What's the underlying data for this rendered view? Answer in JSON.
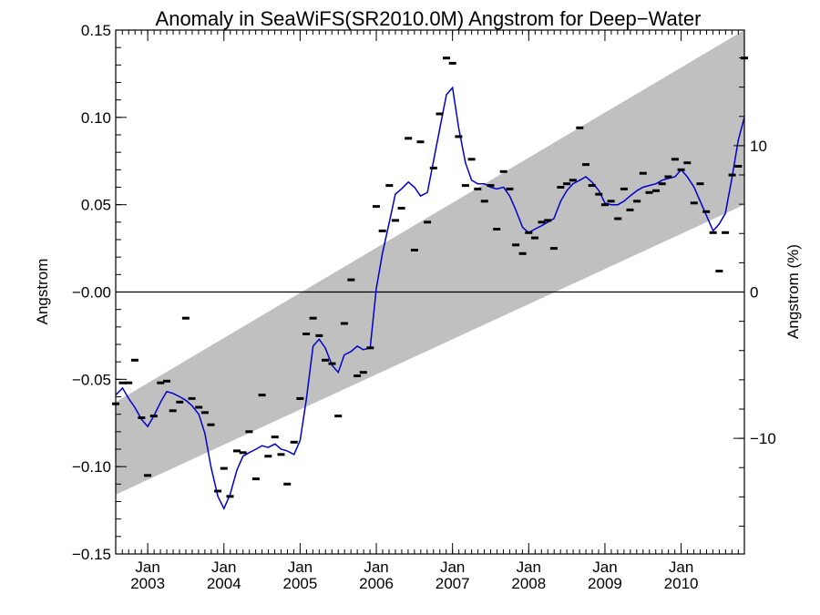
{
  "chart_data": {
    "type": "line",
    "title": "Anomaly in SeaWiFS(SR2010.0M) Angstrom for Deep−Water",
    "ylabel": "Angstrom",
    "y2label": "Angstrom (%)",
    "xlim": [
      2002.58,
      2010.83
    ],
    "ylim": [
      -0.15,
      0.15
    ],
    "y2lim": [
      -17.9,
      17.9
    ],
    "yticks": [
      {
        "v": 0.15,
        "label": "0.15"
      },
      {
        "v": 0.1,
        "label": "0.10"
      },
      {
        "v": 0.05,
        "label": "0.05"
      },
      {
        "v": 0.0,
        "label": "−0.00"
      },
      {
        "v": -0.05,
        "label": "−0.05"
      },
      {
        "v": -0.1,
        "label": "−0.10"
      },
      {
        "v": -0.15,
        "label": "−0.15"
      }
    ],
    "y2ticks": [
      {
        "v": 10,
        "label": "10"
      },
      {
        "v": 0,
        "label": "0"
      },
      {
        "v": -10,
        "label": "−10"
      }
    ],
    "xticks": [
      {
        "v": 2003.0,
        "month": "Jan",
        "year": "2003"
      },
      {
        "v": 2004.0,
        "month": "Jan",
        "year": "2004"
      },
      {
        "v": 2005.0,
        "month": "Jan",
        "year": "2005"
      },
      {
        "v": 2006.0,
        "month": "Jan",
        "year": "2006"
      },
      {
        "v": 2007.0,
        "month": "Jan",
        "year": "2007"
      },
      {
        "v": 2008.0,
        "month": "Jan",
        "year": "2008"
      },
      {
        "v": 2009.0,
        "month": "Jan",
        "year": "2009"
      },
      {
        "v": 2010.0,
        "month": "Jan",
        "year": "2010"
      }
    ],
    "zero_line": 0.0,
    "colors": {
      "trend_band": "#c0c0c0",
      "running_mean": "#0000cc",
      "monthly": "#000000",
      "axes": "#000000"
    },
    "trend_band": {
      "x": [
        2002.58,
        2010.83
      ],
      "upper": [
        -0.063,
        0.15
      ],
      "lower": [
        -0.116,
        0.05
      ]
    },
    "series": [
      {
        "kind": "running_mean",
        "x": [
          2002.58,
          2002.67,
          2002.75,
          2002.83,
          2002.92,
          2003.0,
          2003.08,
          2003.17,
          2003.25,
          2003.33,
          2003.42,
          2003.5,
          2003.58,
          2003.67,
          2003.75,
          2003.83,
          2003.92,
          2004.0,
          2004.08,
          2004.17,
          2004.25,
          2004.33,
          2004.42,
          2004.5,
          2004.58,
          2004.67,
          2004.75,
          2004.83,
          2004.92,
          2005.0,
          2005.08,
          2005.17,
          2005.25,
          2005.33,
          2005.42,
          2005.5,
          2005.58,
          2005.67,
          2005.75,
          2005.83,
          2005.92,
          2006.0,
          2006.08,
          2006.17,
          2006.25,
          2006.33,
          2006.42,
          2006.5,
          2006.58,
          2006.67,
          2006.75,
          2006.83,
          2006.92,
          2007.0,
          2007.08,
          2007.17,
          2007.25,
          2007.33,
          2007.42,
          2007.5,
          2007.58,
          2007.67,
          2007.75,
          2007.83,
          2007.92,
          2008.0,
          2008.08,
          2008.17,
          2008.25,
          2008.33,
          2008.42,
          2008.5,
          2008.58,
          2008.67,
          2008.75,
          2008.83,
          2008.92,
          2009.0,
          2009.08,
          2009.17,
          2009.25,
          2009.33,
          2009.42,
          2009.5,
          2009.58,
          2009.67,
          2009.75,
          2009.83,
          2009.92,
          2010.0,
          2010.08,
          2010.17,
          2010.25,
          2010.33,
          2010.42,
          2010.5,
          2010.58,
          2010.67,
          2010.75,
          2010.83
        ],
        "y": [
          -0.059,
          -0.055,
          -0.061,
          -0.066,
          -0.073,
          -0.077,
          -0.071,
          -0.063,
          -0.057,
          -0.058,
          -0.06,
          -0.062,
          -0.065,
          -0.07,
          -0.081,
          -0.1,
          -0.117,
          -0.124,
          -0.116,
          -0.102,
          -0.094,
          -0.092,
          -0.09,
          -0.088,
          -0.089,
          -0.087,
          -0.09,
          -0.091,
          -0.093,
          -0.085,
          -0.062,
          -0.031,
          -0.027,
          -0.032,
          -0.042,
          -0.046,
          -0.036,
          -0.034,
          -0.031,
          -0.033,
          -0.032,
          0.002,
          0.022,
          0.04,
          0.056,
          0.059,
          0.063,
          0.06,
          0.055,
          0.057,
          0.075,
          0.093,
          0.113,
          0.117,
          0.094,
          0.074,
          0.064,
          0.062,
          0.062,
          0.06,
          0.059,
          0.06,
          0.055,
          0.047,
          0.037,
          0.034,
          0.036,
          0.038,
          0.04,
          0.042,
          0.052,
          0.058,
          0.062,
          0.064,
          0.066,
          0.063,
          0.058,
          0.051,
          0.05,
          0.05,
          0.052,
          0.055,
          0.058,
          0.06,
          0.061,
          0.062,
          0.064,
          0.065,
          0.066,
          0.07,
          0.066,
          0.06,
          0.052,
          0.044,
          0.035,
          0.039,
          0.045,
          0.066,
          0.087,
          0.1
        ]
      },
      {
        "kind": "monthly",
        "x": [
          2002.58,
          2002.67,
          2002.75,
          2002.83,
          2002.92,
          2003.0,
          2003.08,
          2003.17,
          2003.25,
          2003.33,
          2003.42,
          2003.5,
          2003.58,
          2003.67,
          2003.75,
          2003.83,
          2003.92,
          2004.0,
          2004.08,
          2004.17,
          2004.25,
          2004.33,
          2004.42,
          2004.5,
          2004.58,
          2004.67,
          2004.75,
          2004.83,
          2004.92,
          2005.0,
          2005.08,
          2005.17,
          2005.25,
          2005.33,
          2005.42,
          2005.5,
          2005.58,
          2005.67,
          2005.75,
          2005.83,
          2005.92,
          2006.0,
          2006.08,
          2006.17,
          2006.25,
          2006.33,
          2006.42,
          2006.5,
          2006.58,
          2006.67,
          2006.75,
          2006.83,
          2006.92,
          2007.0,
          2007.08,
          2007.17,
          2007.25,
          2007.33,
          2007.42,
          2007.5,
          2007.58,
          2007.67,
          2007.75,
          2007.83,
          2007.92,
          2008.0,
          2008.08,
          2008.17,
          2008.25,
          2008.33,
          2008.42,
          2008.5,
          2008.58,
          2008.67,
          2008.75,
          2008.83,
          2008.92,
          2009.0,
          2009.08,
          2009.17,
          2009.25,
          2009.33,
          2009.42,
          2009.5,
          2009.58,
          2009.67,
          2009.75,
          2009.83,
          2009.92,
          2010.0,
          2010.08,
          2010.17,
          2010.25,
          2010.33,
          2010.42,
          2010.5,
          2010.58,
          2010.67,
          2010.75,
          2010.83
        ],
        "y": [
          -0.064,
          -0.052,
          -0.052,
          -0.039,
          -0.072,
          -0.105,
          -0.071,
          -0.052,
          -0.051,
          -0.068,
          -0.063,
          -0.015,
          -0.061,
          -0.066,
          -0.069,
          -0.076,
          -0.114,
          -0.101,
          -0.117,
          -0.091,
          -0.092,
          -0.08,
          -0.107,
          -0.059,
          -0.094,
          -0.083,
          -0.093,
          -0.11,
          -0.086,
          -0.061,
          -0.024,
          -0.015,
          -0.025,
          -0.039,
          -0.041,
          -0.071,
          -0.018,
          0.007,
          -0.048,
          -0.046,
          -0.032,
          0.049,
          0.035,
          0.061,
          0.041,
          0.048,
          0.088,
          0.024,
          0.086,
          0.04,
          0.071,
          0.102,
          0.134,
          0.131,
          0.089,
          0.061,
          0.076,
          0.059,
          0.052,
          0.061,
          0.036,
          0.069,
          0.059,
          0.027,
          0.022,
          0.034,
          0.031,
          0.04,
          0.041,
          0.025,
          0.06,
          0.062,
          0.064,
          0.094,
          0.073,
          0.061,
          0.056,
          0.05,
          0.052,
          0.042,
          0.059,
          0.047,
          0.052,
          0.068,
          0.057,
          0.058,
          0.062,
          0.066,
          0.076,
          0.07,
          0.074,
          0.051,
          0.062,
          0.046,
          0.034,
          0.012,
          0.034,
          0.067,
          0.072,
          0.134
        ]
      }
    ]
  }
}
